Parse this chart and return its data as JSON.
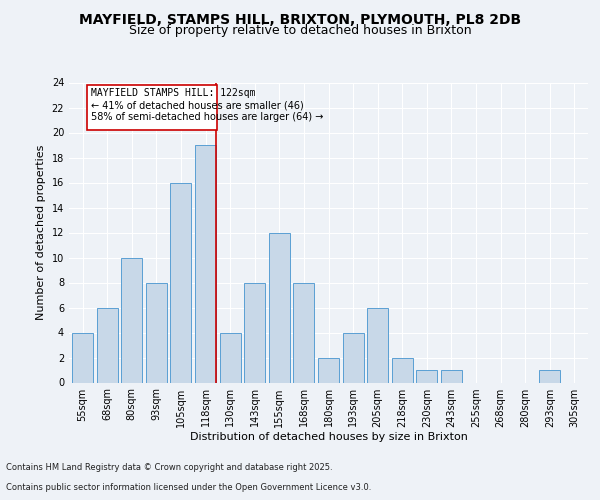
{
  "title": "MAYFIELD, STAMPS HILL, BRIXTON, PLYMOUTH, PL8 2DB",
  "subtitle": "Size of property relative to detached houses in Brixton",
  "xlabel": "Distribution of detached houses by size in Brixton",
  "ylabel": "Number of detached properties",
  "categories": [
    "55sqm",
    "68sqm",
    "80sqm",
    "93sqm",
    "105sqm",
    "118sqm",
    "130sqm",
    "143sqm",
    "155sqm",
    "168sqm",
    "180sqm",
    "193sqm",
    "205sqm",
    "218sqm",
    "230sqm",
    "243sqm",
    "255sqm",
    "268sqm",
    "280sqm",
    "293sqm",
    "305sqm"
  ],
  "values": [
    4,
    6,
    10,
    8,
    16,
    19,
    4,
    8,
    12,
    8,
    2,
    4,
    6,
    2,
    1,
    1,
    0,
    0,
    0,
    1,
    0
  ],
  "bar_color": "#c8d8e8",
  "bar_edge_color": "#5a9fd4",
  "marker_line_index": 5,
  "marker_label": "MAYFIELD STAMPS HILL: 122sqm",
  "annotation_line1": "← 41% of detached houses are smaller (46)",
  "annotation_line2": "58% of semi-detached houses are larger (64) →",
  "marker_color": "#cc0000",
  "box_edge_color": "#cc0000",
  "ylim": [
    0,
    24
  ],
  "yticks": [
    0,
    2,
    4,
    6,
    8,
    10,
    12,
    14,
    16,
    18,
    20,
    22,
    24
  ],
  "footnote1": "Contains HM Land Registry data © Crown copyright and database right 2025.",
  "footnote2": "Contains public sector information licensed under the Open Government Licence v3.0.",
  "bg_color": "#eef2f7",
  "title_fontsize": 10,
  "subtitle_fontsize": 9,
  "axis_fontsize": 8,
  "tick_fontsize": 7
}
